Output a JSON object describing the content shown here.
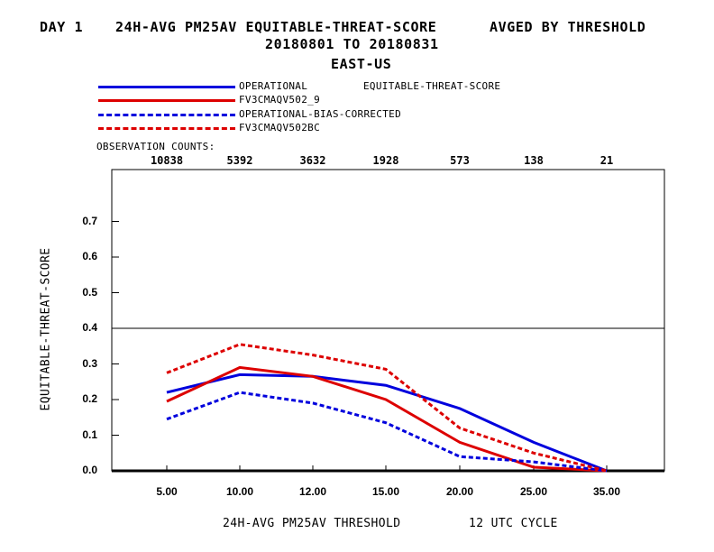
{
  "header": {
    "line1_left": "DAY 1",
    "line1_mid": "24H-AVG PM25AV EQUITABLE-THREAT-SCORE",
    "line1_right": "AVGED BY THRESHOLD",
    "line2": "20180801 TO 20180831",
    "line3": "EAST-US"
  },
  "legend": {
    "metric_label": "EQUITABLE-THREAT-SCORE",
    "obs_counts_label": "OBSERVATION COUNTS:"
  },
  "observation_counts": [
    "10838",
    "5392",
    "3632",
    "1928",
    "573",
    "138",
    "21"
  ],
  "colors": {
    "blue": "#0000dd",
    "red": "#dd0000",
    "axis": "#000000"
  },
  "chart_data": {
    "type": "line",
    "xlabel": "24H-AVG PM25AV THRESHOLD",
    "xlabel_suffix": "12 UTC CYCLE",
    "ylabel": "EQUITABLE-THREAT-SCORE",
    "categories": [
      "5.00",
      "10.00",
      "12.00",
      "15.00",
      "20.00",
      "25.00",
      "35.00"
    ],
    "y_ticks": [
      "0.0",
      "0.1",
      "0.2",
      "0.3",
      "0.4",
      "0.5",
      "0.6",
      "0.7"
    ],
    "ylim": [
      0,
      0.85
    ],
    "reference_line": 0.4,
    "series": [
      {
        "name": "OPERATIONAL",
        "color": "#0000dd",
        "dash": false,
        "values": [
          0.22,
          0.27,
          0.265,
          0.24,
          0.175,
          0.08,
          0.0
        ]
      },
      {
        "name": "FV3CMAQV502_9",
        "color": "#dd0000",
        "dash": false,
        "values": [
          0.195,
          0.29,
          0.265,
          0.2,
          0.08,
          0.01,
          0.0
        ]
      },
      {
        "name": "OPERATIONAL-BIAS-CORRECTED",
        "color": "#0000dd",
        "dash": true,
        "values": [
          0.145,
          0.22,
          0.19,
          0.135,
          0.04,
          0.025,
          0.0
        ]
      },
      {
        "name": "FV3CMAQV502BC",
        "color": "#dd0000",
        "dash": true,
        "values": [
          0.275,
          0.355,
          0.325,
          0.285,
          0.12,
          0.05,
          0.0
        ]
      }
    ]
  }
}
